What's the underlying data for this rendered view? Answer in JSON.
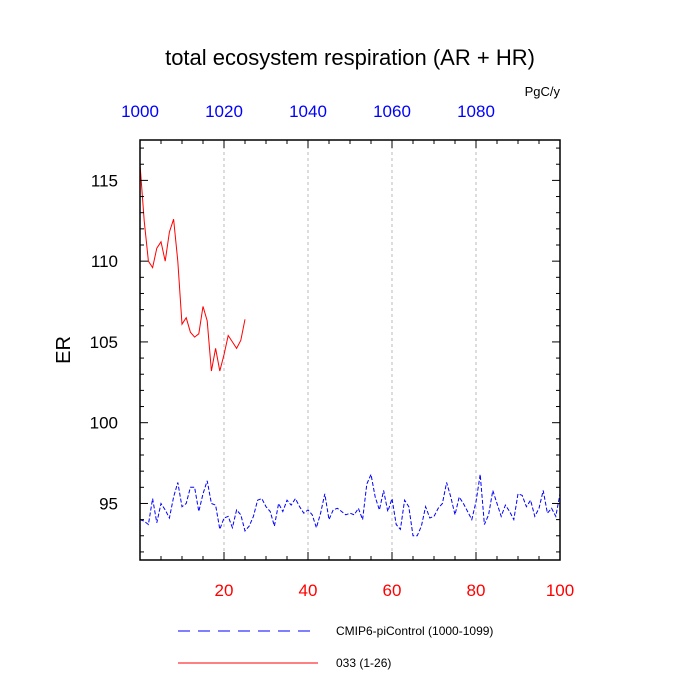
{
  "chart_data": {
    "type": "line",
    "title": "total ecosystem respiration (AR + HR)",
    "units": "PgC/y",
    "ylabel": "ER",
    "xlim": [
      0,
      100
    ],
    "ylim": [
      91.5,
      117.5
    ],
    "x_ticks": [
      20,
      40,
      60,
      80,
      100
    ],
    "top_axis": {
      "ticks": [
        1000,
        1020,
        1040,
        1060,
        1080
      ],
      "offset": 1000,
      "color": "#0000ff"
    },
    "y_ticks": [
      95,
      100,
      105,
      110,
      115
    ],
    "grid": "vertical dashed at x ticks",
    "bottom_axis_color": "#ff0000",
    "series": [
      {
        "name": "CMIP6-piControl (1000-1099)",
        "color": "#0000ff",
        "dash": "dashed",
        "x": [
          0,
          1,
          2,
          3,
          4,
          5,
          6,
          7,
          8,
          9,
          10,
          11,
          12,
          13,
          14,
          15,
          16,
          17,
          18,
          19,
          20,
          21,
          22,
          23,
          24,
          25,
          26,
          27,
          28,
          29,
          30,
          31,
          32,
          33,
          34,
          35,
          36,
          37,
          38,
          39,
          40,
          41,
          42,
          43,
          44,
          45,
          46,
          47,
          48,
          49,
          50,
          51,
          52,
          53,
          54,
          55,
          56,
          57,
          58,
          59,
          60,
          61,
          62,
          63,
          64,
          65,
          66,
          67,
          68,
          69,
          70,
          71,
          72,
          73,
          74,
          75,
          76,
          77,
          78,
          79,
          80,
          81,
          82,
          83,
          84,
          85,
          86,
          87,
          88,
          89,
          90,
          91,
          92,
          93,
          94,
          95,
          96,
          97,
          98,
          99,
          100
        ],
        "values": [
          94.0,
          93.9,
          93.7,
          95.3,
          93.8,
          95.0,
          94.6,
          94.1,
          95.4,
          96.3,
          94.8,
          95.0,
          96.0,
          96.0,
          94.5,
          95.6,
          96.4,
          95.0,
          94.9,
          93.4,
          94.1,
          94.2,
          93.5,
          94.6,
          94.3,
          93.3,
          93.6,
          94.2,
          95.2,
          95.3,
          94.8,
          94.5,
          93.6,
          95.0,
          94.5,
          95.2,
          94.9,
          95.3,
          94.8,
          94.4,
          94.6,
          94.3,
          93.5,
          94.4,
          95.6,
          94.0,
          94.6,
          94.7,
          94.5,
          94.3,
          94.4,
          94.3,
          94.7,
          94.0,
          96.2,
          96.8,
          95.4,
          94.6,
          95.8,
          94.5,
          95.3,
          93.7,
          93.4,
          95.2,
          94.8,
          93.0,
          93.0,
          93.6,
          94.8,
          94.1,
          94.2,
          94.7,
          95.0,
          96.3,
          95.4,
          94.3,
          95.4,
          95.0,
          94.5,
          94.0,
          95.1,
          96.8,
          93.7,
          94.3,
          95.8,
          95.0,
          94.2,
          94.9,
          94.5,
          94.0,
          95.6,
          95.5,
          94.8,
          95.2,
          94.2,
          94.7,
          95.8,
          94.4,
          94.7,
          94.2,
          95.6
        ]
      },
      {
        "name": "033 (1-26)",
        "color": "#ff0000",
        "dash": "solid",
        "x": [
          0,
          1,
          2,
          3,
          4,
          5,
          6,
          7,
          8,
          9,
          10,
          11,
          12,
          13,
          14,
          15,
          16,
          17,
          18,
          19,
          20,
          21,
          22,
          23,
          24,
          25
        ],
        "values": [
          116.0,
          112.5,
          110.0,
          109.6,
          110.8,
          111.2,
          110.0,
          111.8,
          112.6,
          110.0,
          106.1,
          106.5,
          105.6,
          105.3,
          105.5,
          107.2,
          106.3,
          103.2,
          104.6,
          103.2,
          104.2,
          105.4,
          105.0,
          104.6,
          105.1,
          106.4
        ]
      }
    ]
  }
}
